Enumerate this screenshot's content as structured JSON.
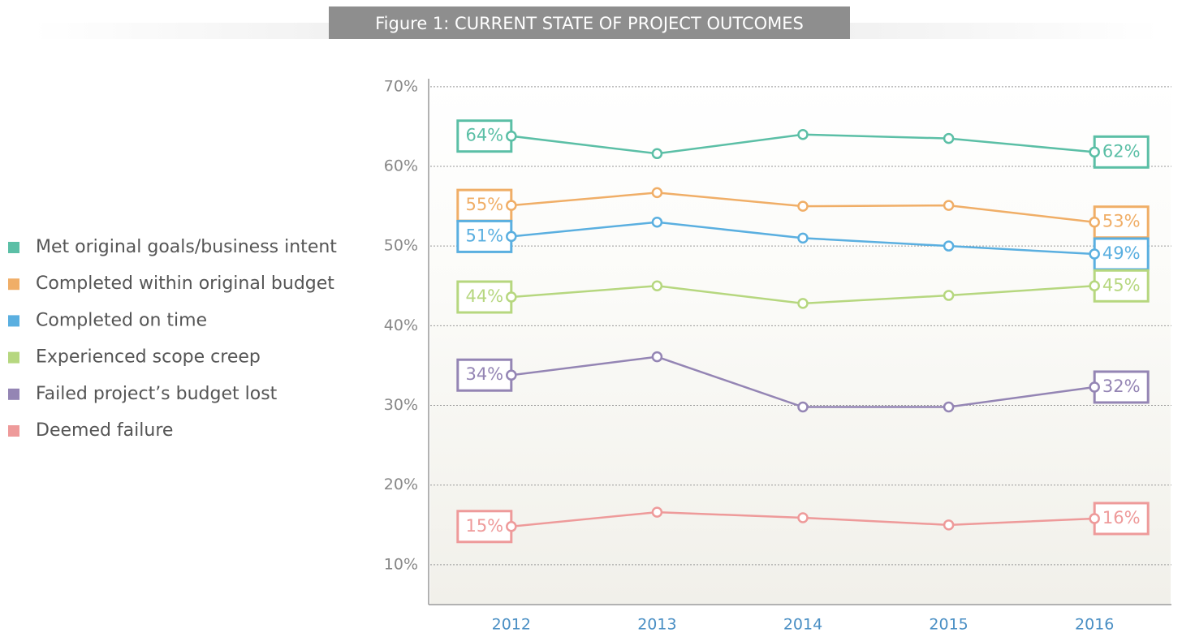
{
  "chart_data": {
    "type": "line",
    "title": "Figure 1: CURRENT STATE OF PROJECT OUTCOMES",
    "categories": [
      "2012",
      "2013",
      "2014",
      "2015",
      "2016"
    ],
    "ylim": [
      5,
      71
    ],
    "yticks": [
      {
        "value": 10,
        "label": "10%"
      },
      {
        "value": 20,
        "label": "20%"
      },
      {
        "value": 30,
        "label": "30%"
      },
      {
        "value": 40,
        "label": "40%"
      },
      {
        "value": 50,
        "label": "50%"
      },
      {
        "value": 60,
        "label": "60%"
      },
      {
        "value": 70,
        "label": "70%"
      }
    ],
    "grid": true,
    "legend": "left",
    "series": [
      {
        "name": "Met original goals/business intent",
        "color": "#5bbfa6",
        "values": [
          63.8,
          61.6,
          64.0,
          63.5,
          61.8
        ],
        "value_labels": [
          "64%",
          null,
          null,
          null,
          "62%"
        ]
      },
      {
        "name": "Completed within original budget",
        "color": "#f0ae67",
        "values": [
          55.1,
          56.7,
          55.0,
          55.1,
          53.0
        ],
        "value_labels": [
          "55%",
          null,
          null,
          null,
          "53%"
        ]
      },
      {
        "name": "Completed on time",
        "color": "#5aafe0",
        "values": [
          51.2,
          53.0,
          51.0,
          50.0,
          49.0
        ],
        "value_labels": [
          "51%",
          null,
          null,
          null,
          "49%"
        ]
      },
      {
        "name": "Experienced scope creep",
        "color": "#b6d77f",
        "values": [
          43.6,
          45.0,
          42.8,
          43.8,
          45.0
        ],
        "value_labels": [
          "44%",
          null,
          null,
          null,
          "45%"
        ]
      },
      {
        "name": "Failed project’s budget lost",
        "color": "#9485b4",
        "values": [
          33.8,
          36.1,
          29.8,
          29.8,
          32.3
        ],
        "value_labels": [
          "34%",
          null,
          null,
          null,
          "32%"
        ]
      },
      {
        "name": "Deemed failure",
        "color": "#ee9a9a",
        "values": [
          14.8,
          16.6,
          15.9,
          15.0,
          15.8
        ],
        "value_labels": [
          "15%",
          null,
          null,
          null,
          "16%"
        ]
      }
    ]
  }
}
